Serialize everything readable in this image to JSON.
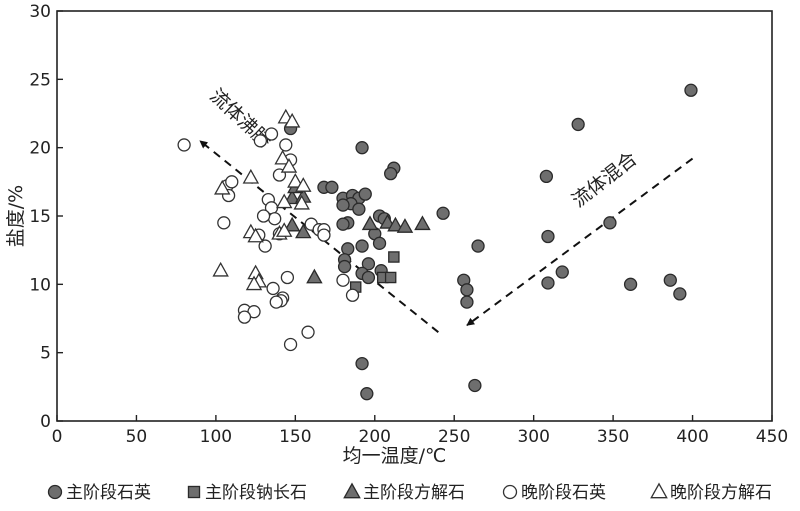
{
  "chart_data": {
    "type": "scatter",
    "xlabel": "均一温度/℃",
    "ylabel": "盐度/%",
    "xlim": [
      0,
      450
    ],
    "ylim": [
      0,
      30
    ],
    "xticks": [
      0,
      50,
      100,
      150,
      200,
      250,
      300,
      350,
      400,
      450
    ],
    "yticks": [
      0,
      5,
      10,
      15,
      20,
      25,
      30
    ],
    "grid": false,
    "legend_position": "bottom",
    "annotations": [
      {
        "text": "流体沸腾",
        "from": [
          240,
          6.5
        ],
        "to": [
          90,
          20.5
        ]
      },
      {
        "text": "流体混合",
        "from": [
          400,
          19.2
        ],
        "to": [
          258,
          7
        ]
      }
    ],
    "series": [
      {
        "name": "主阶段石英",
        "marker": "filled-circle",
        "points": [
          [
            147,
            21.4
          ],
          [
            192,
            20.0
          ],
          [
            212,
            18.5
          ],
          [
            210,
            18.1
          ],
          [
            168,
            17.1
          ],
          [
            173,
            17.1
          ],
          [
            180,
            16.3
          ],
          [
            186,
            16.5
          ],
          [
            190,
            16.3
          ],
          [
            194,
            16.6
          ],
          [
            185,
            15.9
          ],
          [
            180,
            15.8
          ],
          [
            190,
            15.5
          ],
          [
            203,
            15.0
          ],
          [
            206,
            14.8
          ],
          [
            243,
            15.2
          ],
          [
            183,
            14.5
          ],
          [
            180,
            14.4
          ],
          [
            200,
            13.7
          ],
          [
            203,
            13.0
          ],
          [
            183,
            12.6
          ],
          [
            192,
            12.8
          ],
          [
            265,
            12.8
          ],
          [
            181,
            11.8
          ],
          [
            181,
            11.3
          ],
          [
            196,
            11.5
          ],
          [
            204,
            11.0
          ],
          [
            192,
            10.8
          ],
          [
            196,
            10.5
          ],
          [
            256,
            10.3
          ],
          [
            258,
            9.6
          ],
          [
            258,
            8.7
          ],
          [
            192,
            4.2
          ],
          [
            195,
            2.0
          ],
          [
            263,
            2.6
          ],
          [
            308,
            17.9
          ],
          [
            309,
            13.5
          ],
          [
            328,
            21.7
          ],
          [
            348,
            14.5
          ],
          [
            399,
            24.2
          ],
          [
            309,
            10.1
          ],
          [
            318,
            10.9
          ],
          [
            361,
            10.0
          ],
          [
            386,
            10.3
          ],
          [
            392,
            9.3
          ]
        ]
      },
      {
        "name": "主阶段钠长石",
        "marker": "filled-square",
        "points": [
          [
            212,
            12.0
          ],
          [
            205,
            10.5
          ],
          [
            210,
            10.5
          ],
          [
            188,
            9.8
          ]
        ]
      },
      {
        "name": "主阶段方解石",
        "marker": "filled-triangle",
        "points": [
          [
            148,
            16.3
          ],
          [
            155,
            16.4
          ],
          [
            150,
            17.1
          ],
          [
            148,
            14.3
          ],
          [
            155,
            13.8
          ],
          [
            162,
            10.5
          ],
          [
            197,
            14.4
          ],
          [
            208,
            14.5
          ],
          [
            213,
            14.3
          ],
          [
            219,
            14.2
          ],
          [
            230,
            14.4
          ]
        ]
      },
      {
        "name": "晚阶段石英",
        "marker": "open-circle",
        "points": [
          [
            80,
            20.2
          ],
          [
            135,
            21.0
          ],
          [
            144,
            20.2
          ],
          [
            147,
            19.1
          ],
          [
            128,
            20.5
          ],
          [
            107,
            17.2
          ],
          [
            110,
            17.5
          ],
          [
            108,
            16.5
          ],
          [
            140,
            18.0
          ],
          [
            133,
            16.2
          ],
          [
            135,
            15.6
          ],
          [
            137,
            14.8
          ],
          [
            130,
            15.0
          ],
          [
            105,
            14.5
          ],
          [
            160,
            14.4
          ],
          [
            165,
            14.0
          ],
          [
            168,
            14.0
          ],
          [
            168,
            13.6
          ],
          [
            127,
            13.6
          ],
          [
            131,
            12.8
          ],
          [
            145,
            10.5
          ],
          [
            136,
            9.7
          ],
          [
            142,
            9.0
          ],
          [
            141,
            8.8
          ],
          [
            138,
            8.7
          ],
          [
            118,
            8.1
          ],
          [
            124,
            8.0
          ],
          [
            118,
            7.6
          ],
          [
            158,
            6.5
          ],
          [
            147,
            5.6
          ],
          [
            140,
            13.7
          ],
          [
            186,
            9.2
          ],
          [
            180,
            10.3
          ]
        ]
      },
      {
        "name": "晚阶段方解石",
        "marker": "open-triangle",
        "points": [
          [
            144,
            22.2
          ],
          [
            148,
            21.9
          ],
          [
            142,
            19.2
          ],
          [
            146,
            18.6
          ],
          [
            122,
            17.8
          ],
          [
            104,
            17.0
          ],
          [
            150,
            17.5
          ],
          [
            155,
            17.2
          ],
          [
            143,
            16.0
          ],
          [
            154,
            15.9
          ],
          [
            140,
            13.7
          ],
          [
            122,
            13.8
          ],
          [
            125,
            13.5
          ],
          [
            143,
            13.9
          ],
          [
            103,
            11.0
          ],
          [
            125,
            10.8
          ],
          [
            127,
            10.2
          ],
          [
            124,
            10.0
          ]
        ]
      }
    ]
  }
}
